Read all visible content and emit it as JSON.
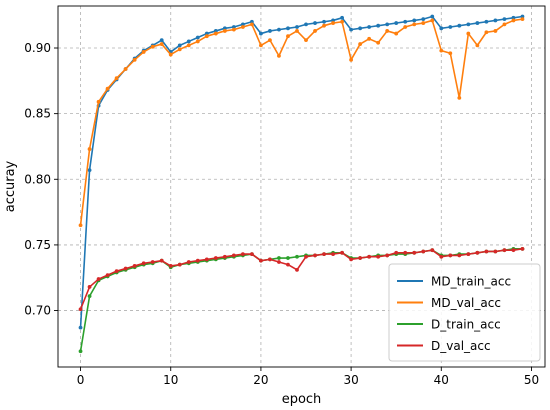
{
  "chart_data": {
    "type": "line",
    "title": "",
    "xlabel": "epoch",
    "ylabel": "accuray",
    "xlim": [
      -2.5,
      51.5
    ],
    "ylim": [
      0.657,
      0.932
    ],
    "x_ticks": [
      0,
      10,
      20,
      30,
      40,
      50
    ],
    "y_ticks": [
      0.7,
      0.75,
      0.8,
      0.85,
      0.9
    ],
    "y_tick_labels": [
      "0.70",
      "0.75",
      "0.80",
      "0.85",
      "0.90"
    ],
    "x_tick_labels": [
      "0",
      "10",
      "20",
      "30",
      "40",
      "50"
    ],
    "grid": true,
    "legend_position": "bottom-right",
    "x": [
      0,
      1,
      2,
      3,
      4,
      5,
      6,
      7,
      8,
      9,
      10,
      11,
      12,
      13,
      14,
      15,
      16,
      17,
      18,
      19,
      20,
      21,
      22,
      23,
      24,
      25,
      26,
      27,
      28,
      29,
      30,
      31,
      32,
      33,
      34,
      35,
      36,
      37,
      38,
      39,
      40,
      41,
      42,
      43,
      44,
      45,
      46,
      47,
      48,
      49
    ],
    "series": [
      {
        "name": "MD_train_acc",
        "color": "#1f77b4",
        "values": [
          0.687,
          0.807,
          0.856,
          0.868,
          0.876,
          0.884,
          0.892,
          0.898,
          0.902,
          0.906,
          0.897,
          0.902,
          0.905,
          0.908,
          0.911,
          0.913,
          0.915,
          0.916,
          0.918,
          0.92,
          0.911,
          0.913,
          0.914,
          0.915,
          0.916,
          0.918,
          0.919,
          0.92,
          0.921,
          0.923,
          0.914,
          0.915,
          0.916,
          0.917,
          0.918,
          0.919,
          0.92,
          0.921,
          0.922,
          0.924,
          0.915,
          0.916,
          0.917,
          0.918,
          0.919,
          0.92,
          0.921,
          0.922,
          0.923,
          0.924
        ]
      },
      {
        "name": "MD_val_acc",
        "color": "#ff7f0e",
        "values": [
          0.765,
          0.823,
          0.859,
          0.869,
          0.877,
          0.884,
          0.891,
          0.897,
          0.901,
          0.903,
          0.895,
          0.899,
          0.902,
          0.905,
          0.909,
          0.911,
          0.913,
          0.914,
          0.916,
          0.918,
          0.902,
          0.906,
          0.894,
          0.909,
          0.913,
          0.906,
          0.913,
          0.917,
          0.919,
          0.92,
          0.891,
          0.903,
          0.907,
          0.904,
          0.913,
          0.911,
          0.916,
          0.918,
          0.919,
          0.921,
          0.898,
          0.896,
          0.862,
          0.911,
          0.902,
          0.912,
          0.913,
          0.918,
          0.921,
          0.922
        ]
      },
      {
        "name": "D_train_acc",
        "color": "#2ca02c",
        "values": [
          0.669,
          0.711,
          0.723,
          0.726,
          0.729,
          0.731,
          0.733,
          0.735,
          0.736,
          0.738,
          0.733,
          0.735,
          0.736,
          0.737,
          0.738,
          0.739,
          0.74,
          0.741,
          0.742,
          0.743,
          0.738,
          0.739,
          0.74,
          0.74,
          0.741,
          0.742,
          0.742,
          0.743,
          0.744,
          0.744,
          0.74,
          0.74,
          0.741,
          0.742,
          0.742,
          0.743,
          0.743,
          0.744,
          0.745,
          0.746,
          0.742,
          0.742,
          0.743,
          0.743,
          0.744,
          0.745,
          0.745,
          0.746,
          0.747,
          0.747
        ]
      },
      {
        "name": "D_val_acc",
        "color": "#d62728",
        "values": [
          0.701,
          0.718,
          0.724,
          0.727,
          0.73,
          0.732,
          0.734,
          0.736,
          0.737,
          0.738,
          0.734,
          0.735,
          0.737,
          0.738,
          0.739,
          0.74,
          0.741,
          0.742,
          0.743,
          0.743,
          0.738,
          0.739,
          0.737,
          0.735,
          0.731,
          0.741,
          0.742,
          0.743,
          0.743,
          0.744,
          0.739,
          0.74,
          0.741,
          0.741,
          0.742,
          0.744,
          0.744,
          0.744,
          0.745,
          0.746,
          0.741,
          0.742,
          0.742,
          0.743,
          0.744,
          0.745,
          0.745,
          0.746,
          0.746,
          0.747
        ]
      }
    ]
  }
}
